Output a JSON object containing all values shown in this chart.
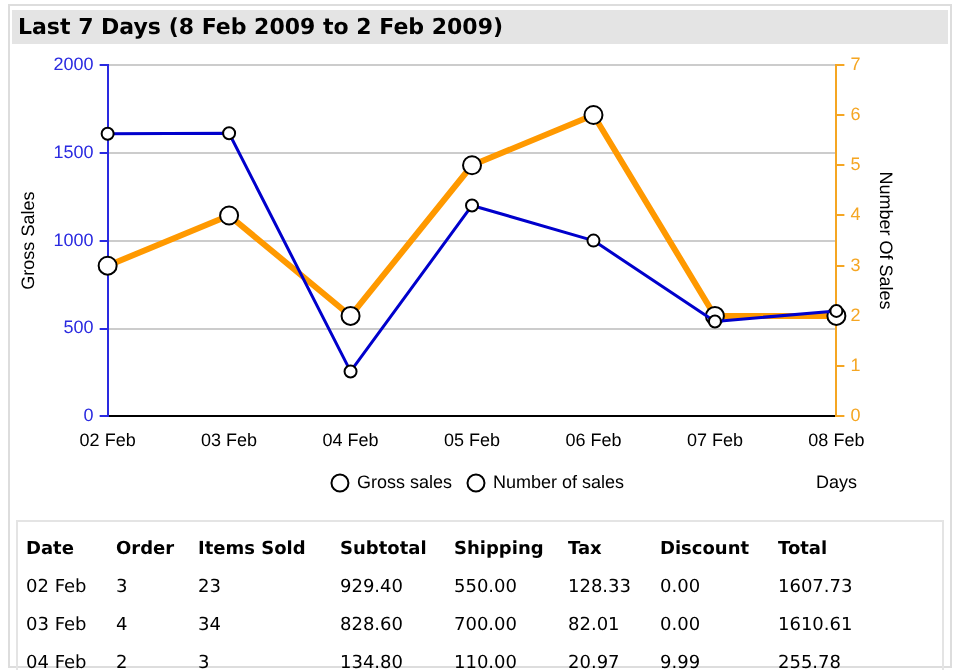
{
  "chart_data": {
    "type": "line",
    "title": "Last 7 Days (8 Feb 2009 to 2 Feb 2009)",
    "xlabel": "Days",
    "ylabel": "Gross Sales",
    "y2label": "Number Of Sales",
    "categories": [
      "02 Feb",
      "03 Feb",
      "04 Feb",
      "05 Feb",
      "06 Feb",
      "07 Feb",
      "08 Feb"
    ],
    "series": [
      {
        "name": "Gross sales",
        "color": "#0000cc",
        "values": [
          1607.73,
          1610.61,
          255.78,
          1200,
          1000,
          540,
          600
        ]
      },
      {
        "name": "Number of sales",
        "color": "#ff9900",
        "axis": "y2",
        "values": [
          3,
          4,
          2,
          5,
          6,
          2,
          2
        ]
      }
    ],
    "ylim": [
      0,
      2000
    ],
    "yticks": [
      0,
      500,
      1000,
      1500,
      2000
    ],
    "y2lim": [
      0,
      7
    ],
    "y2ticks": [
      0,
      1,
      2,
      3,
      4,
      5,
      6,
      7
    ],
    "grid": "y",
    "legend": "bottom",
    "marker": "circle",
    "line_style": "solid",
    "annotations": [
      "Date",
      "Order",
      "Items Sold",
      "Subtotal",
      "Shipping",
      "Tax",
      "Discount",
      "Total",
      "02 Feb",
      "3",
      "23",
      "929.40",
      "550.00",
      "128.33",
      "0.00",
      "1607.73",
      "03 Feb",
      "4",
      "34",
      "828.60",
      "700.00",
      "82.01",
      "0.00",
      "1610.61",
      "04 Feb",
      "2",
      "3",
      "134.80",
      "110.00",
      "20.97",
      "9.99",
      "255.78"
    ]
  }
}
